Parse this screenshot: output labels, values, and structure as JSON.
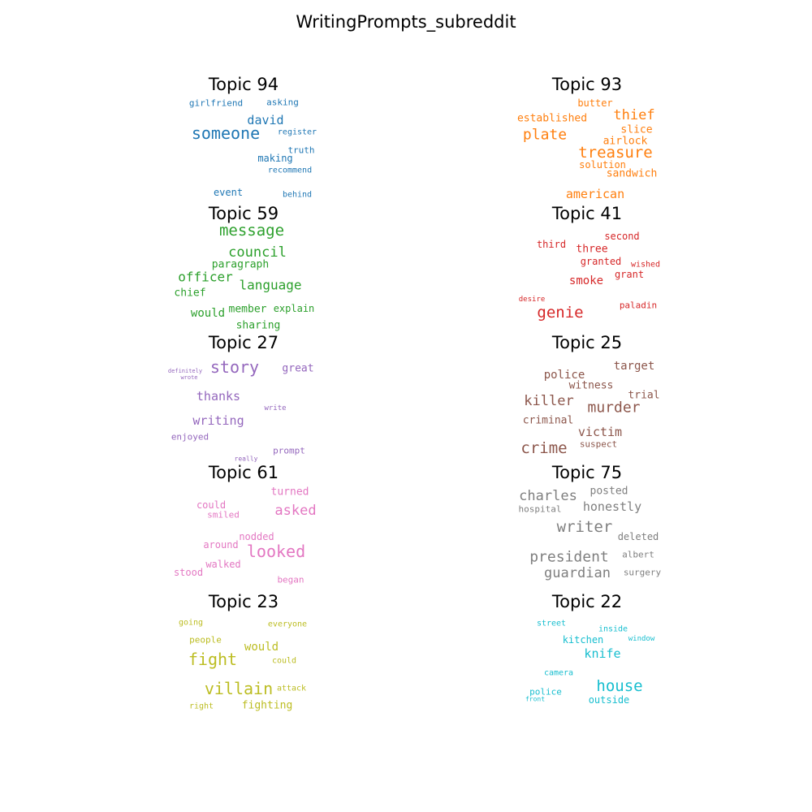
{
  "title": "WritingPrompts_subreddit",
  "panels": [
    {
      "title": "Topic 94",
      "color": "#1f77b4",
      "words": [
        "girlfriend",
        "asking",
        "david",
        "someone",
        "register",
        "truth",
        "making",
        "recommend",
        "event",
        "behind"
      ]
    },
    {
      "title": "Topic 93",
      "color": "#ff7f0e",
      "words": [
        "butter",
        "established",
        "thief",
        "plate",
        "slice",
        "airlock",
        "treasure",
        "solution",
        "sandwich",
        "american"
      ]
    },
    {
      "title": "Topic 59",
      "color": "#2ca02c",
      "words": [
        "message",
        "council",
        "paragraph",
        "officer",
        "language",
        "chief",
        "would",
        "member",
        "explain",
        "sharing"
      ]
    },
    {
      "title": "Topic 41",
      "color": "#d62728",
      "words": [
        "second",
        "third",
        "three",
        "granted",
        "wished",
        "grant",
        "smoke",
        "desire",
        "genie",
        "paladin"
      ]
    },
    {
      "title": "Topic 27",
      "color": "#9467bd",
      "words": [
        "definitely",
        "wrote",
        "story",
        "great",
        "thanks",
        "write",
        "writing",
        "enjoyed",
        "prompt",
        "really"
      ]
    },
    {
      "title": "Topic 25",
      "color": "#8c564b",
      "words": [
        "target",
        "police",
        "witness",
        "killer",
        "trial",
        "murder",
        "criminal",
        "victim",
        "suspect",
        "crime"
      ]
    },
    {
      "title": "Topic 61",
      "color": "#e377c2",
      "words": [
        "turned",
        "could",
        "asked",
        "smiled",
        "nodded",
        "around",
        "looked",
        "walked",
        "stood",
        "began"
      ]
    },
    {
      "title": "Topic 75",
      "color": "#7f7f7f",
      "words": [
        "charles",
        "posted",
        "hospital",
        "honestly",
        "writer",
        "deleted",
        "president",
        "albert",
        "guardian",
        "surgery"
      ]
    },
    {
      "title": "Topic 23",
      "color": "#bcbd22",
      "words": [
        "going",
        "everyone",
        "people",
        "would",
        "fight",
        "could",
        "villain",
        "attack",
        "right",
        "fighting"
      ]
    },
    {
      "title": "Topic 22",
      "color": "#17becf",
      "words": [
        "street",
        "inside",
        "kitchen",
        "window",
        "knife",
        "camera",
        "house",
        "police",
        "front",
        "outside"
      ]
    }
  ]
}
